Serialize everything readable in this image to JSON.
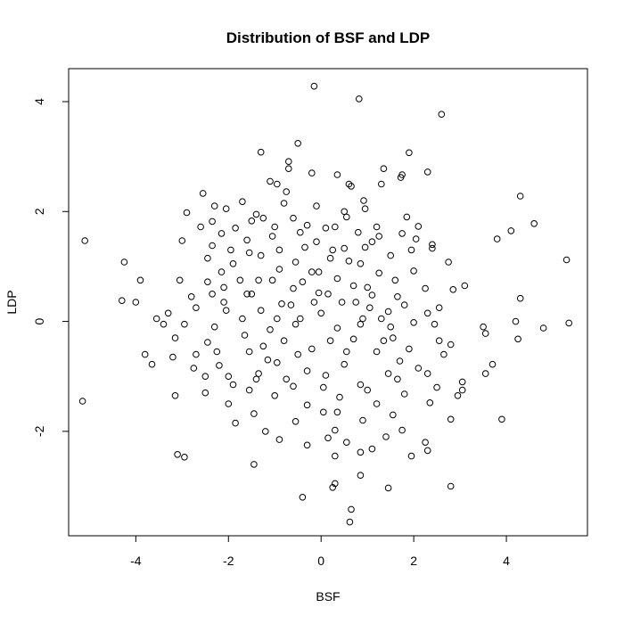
{
  "chart_data": {
    "type": "scatter",
    "title": "Distribution of BSF and LDP",
    "xlabel": "BSF",
    "ylabel": "LDP",
    "xlim": [
      -5.45,
      5.75
    ],
    "ylim": [
      -3.9,
      4.6
    ],
    "x_ticks": [
      -4,
      -2,
      0,
      2,
      4
    ],
    "y_ticks": [
      -2,
      0,
      2,
      4
    ],
    "x_tick_labels": [
      "-4",
      "-2",
      "0",
      "2",
      "4"
    ],
    "y_tick_labels": [
      "-2",
      "0",
      "2",
      "4"
    ],
    "grid": false,
    "box": true,
    "marker": "open-circle",
    "points": [
      [
        -0.15,
        4.28
      ],
      [
        0.82,
        4.05
      ],
      [
        2.6,
        3.77
      ],
      [
        -0.5,
        3.24
      ],
      [
        -1.3,
        3.08
      ],
      [
        1.9,
        3.07
      ],
      [
        -0.7,
        2.91
      ],
      [
        -0.7,
        2.78
      ],
      [
        1.35,
        2.78
      ],
      [
        2.3,
        2.72
      ],
      [
        -0.2,
        2.7
      ],
      [
        0.35,
        2.67
      ],
      [
        1.75,
        2.67
      ],
      [
        1.72,
        2.62
      ],
      [
        -1.1,
        2.55
      ],
      [
        -0.95,
        2.5
      ],
      [
        0.6,
        2.5
      ],
      [
        0.65,
        2.46
      ],
      [
        1.3,
        2.5
      ],
      [
        -2.55,
        2.33
      ],
      [
        -0.75,
        2.36
      ],
      [
        4.3,
        2.28
      ],
      [
        -1.7,
        2.18
      ],
      [
        0.92,
        2.2
      ],
      [
        -2.3,
        2.1
      ],
      [
        -2.05,
        2.05
      ],
      [
        -0.1,
        2.1
      ],
      [
        0.95,
        2.05
      ],
      [
        -2.9,
        1.98
      ],
      [
        -1.4,
        1.95
      ],
      [
        -1.25,
        1.88
      ],
      [
        -0.6,
        1.88
      ],
      [
        0.55,
        1.9
      ],
      [
        1.85,
        1.9
      ],
      [
        -2.35,
        1.82
      ],
      [
        -1.5,
        1.83
      ],
      [
        -0.3,
        1.75
      ],
      [
        4.6,
        1.78
      ],
      [
        2.1,
        1.73
      ],
      [
        -2.6,
        1.72
      ],
      [
        -1.85,
        1.7
      ],
      [
        -1.0,
        1.72
      ],
      [
        0.3,
        1.72
      ],
      [
        1.2,
        1.72
      ],
      [
        4.1,
        1.65
      ],
      [
        -2.15,
        1.6
      ],
      [
        -0.45,
        1.62
      ],
      [
        0.8,
        1.62
      ],
      [
        1.75,
        1.6
      ],
      [
        3.8,
        1.5
      ],
      [
        -5.1,
        1.47
      ],
      [
        -3.0,
        1.47
      ],
      [
        -1.6,
        1.48
      ],
      [
        -0.1,
        1.45
      ],
      [
        1.1,
        1.45
      ],
      [
        2.4,
        1.4
      ],
      [
        2.4,
        1.33
      ],
      [
        -2.35,
        1.38
      ],
      [
        -0.9,
        1.3
      ],
      [
        0.5,
        1.33
      ],
      [
        1.95,
        1.3
      ],
      [
        -2.45,
        1.15
      ],
      [
        -1.3,
        1.2
      ],
      [
        0.2,
        1.15
      ],
      [
        1.5,
        1.2
      ],
      [
        5.3,
        1.12
      ],
      [
        -4.25,
        1.08
      ],
      [
        -1.9,
        1.05
      ],
      [
        -0.55,
        1.08
      ],
      [
        0.85,
        1.05
      ],
      [
        2.75,
        1.08
      ],
      [
        -2.15,
        0.9
      ],
      [
        -0.2,
        0.9
      ],
      [
        1.25,
        0.88
      ],
      [
        2.0,
        0.92
      ],
      [
        -3.05,
        0.75
      ],
      [
        -3.9,
        0.75
      ],
      [
        -2.45,
        0.72
      ],
      [
        -1.05,
        0.75
      ],
      [
        0.35,
        0.78
      ],
      [
        1.6,
        0.75
      ],
      [
        -2.1,
        0.62
      ],
      [
        -0.6,
        0.6
      ],
      [
        0.7,
        0.65
      ],
      [
        3.1,
        0.65
      ],
      [
        2.85,
        0.58
      ],
      [
        -2.8,
        0.45
      ],
      [
        -1.5,
        0.5
      ],
      [
        -0.05,
        0.52
      ],
      [
        1.1,
        0.48
      ],
      [
        4.3,
        0.42
      ],
      [
        -4.3,
        0.38
      ],
      [
        -4.0,
        0.35
      ],
      [
        -3.3,
        0.15
      ],
      [
        -2.1,
        0.35
      ],
      [
        -0.85,
        0.32
      ],
      [
        0.45,
        0.35
      ],
      [
        1.8,
        0.3
      ],
      [
        2.55,
        0.25
      ],
      [
        -2.7,
        0.25
      ],
      [
        -1.3,
        0.2
      ],
      [
        0.0,
        0.15
      ],
      [
        1.45,
        0.18
      ],
      [
        2.3,
        0.15
      ],
      [
        3.5,
        -0.1
      ],
      [
        -3.55,
        0.05
      ],
      [
        -3.4,
        -0.05
      ],
      [
        -2.95,
        -0.05
      ],
      [
        -1.7,
        0.05
      ],
      [
        -0.45,
        0.05
      ],
      [
        0.9,
        0.05
      ],
      [
        2.0,
        -0.02
      ],
      [
        4.2,
        0.0
      ],
      [
        5.35,
        -0.03
      ],
      [
        -2.3,
        -0.1
      ],
      [
        -1.1,
        -0.15
      ],
      [
        0.35,
        -0.12
      ],
      [
        1.5,
        -0.1
      ],
      [
        4.8,
        -0.12
      ],
      [
        3.55,
        -0.22
      ],
      [
        -3.15,
        -0.3
      ],
      [
        -2.45,
        -0.38
      ],
      [
        -0.8,
        -0.35
      ],
      [
        0.7,
        -0.32
      ],
      [
        2.55,
        -0.35
      ],
      [
        4.25,
        -0.32
      ],
      [
        -3.8,
        -0.6
      ],
      [
        -2.7,
        -0.6
      ],
      [
        -1.55,
        -0.55
      ],
      [
        -0.2,
        -0.5
      ],
      [
        1.2,
        -0.55
      ],
      [
        2.8,
        -0.42
      ],
      [
        -3.65,
        -0.78
      ],
      [
        -2.2,
        -0.8
      ],
      [
        -0.95,
        -0.75
      ],
      [
        0.5,
        -0.78
      ],
      [
        1.7,
        -0.72
      ],
      [
        3.7,
        -0.78
      ],
      [
        -3.2,
        -0.65
      ],
      [
        -2.5,
        -1.0
      ],
      [
        -1.35,
        -0.95
      ],
      [
        0.1,
        -0.98
      ],
      [
        1.45,
        -0.95
      ],
      [
        3.55,
        -0.95
      ],
      [
        2.3,
        -0.95
      ],
      [
        -1.9,
        -1.15
      ],
      [
        -0.6,
        -1.18
      ],
      [
        0.85,
        -1.15
      ],
      [
        2.5,
        -1.2
      ],
      [
        3.05,
        -1.1
      ],
      [
        -3.15,
        -1.35
      ],
      [
        -2.5,
        -1.3
      ],
      [
        -1.0,
        -1.35
      ],
      [
        0.4,
        -1.38
      ],
      [
        1.8,
        -1.32
      ],
      [
        2.95,
        -1.35
      ],
      [
        3.05,
        -1.25
      ],
      [
        -2.0,
        -1.5
      ],
      [
        -0.3,
        -1.52
      ],
      [
        1.2,
        -1.5
      ],
      [
        2.35,
        -1.48
      ],
      [
        -5.15,
        -1.45
      ],
      [
        -1.45,
        -1.68
      ],
      [
        0.05,
        -1.65
      ],
      [
        1.55,
        -1.7
      ],
      [
        -1.85,
        -1.85
      ],
      [
        -0.55,
        -1.82
      ],
      [
        0.9,
        -1.8
      ],
      [
        2.8,
        -1.78
      ],
      [
        3.9,
        -1.78
      ],
      [
        -1.2,
        -2.0
      ],
      [
        0.3,
        -1.98
      ],
      [
        1.75,
        -1.98
      ],
      [
        -0.9,
        -2.15
      ],
      [
        0.55,
        -2.2
      ],
      [
        1.4,
        -2.1
      ],
      [
        2.25,
        -2.2
      ],
      [
        -0.3,
        -2.25
      ],
      [
        0.15,
        -2.12
      ],
      [
        1.1,
        -2.32
      ],
      [
        -3.1,
        -2.42
      ],
      [
        -2.95,
        -2.47
      ],
      [
        0.85,
        -2.38
      ],
      [
        1.95,
        -2.45
      ],
      [
        2.3,
        -2.35
      ],
      [
        -1.45,
        -2.6
      ],
      [
        0.3,
        -2.45
      ],
      [
        0.85,
        -2.8
      ],
      [
        0.3,
        -2.95
      ],
      [
        0.25,
        -3.02
      ],
      [
        1.45,
        -3.03
      ],
      [
        2.8,
        -3.0
      ],
      [
        -0.4,
        -3.2
      ],
      [
        0.65,
        -3.42
      ],
      [
        0.62,
        -3.65
      ],
      [
        -0.9,
        0.95
      ],
      [
        -1.75,
        0.75
      ],
      [
        -1.55,
        1.25
      ],
      [
        0.6,
        1.1
      ],
      [
        1.0,
        0.62
      ],
      [
        -0.35,
        1.35
      ],
      [
        0.15,
        0.5
      ],
      [
        -0.55,
        -0.05
      ],
      [
        -1.25,
        -0.45
      ],
      [
        0.55,
        -0.55
      ],
      [
        1.9,
        -0.5
      ],
      [
        -1.65,
        -0.25
      ],
      [
        -0.05,
        0.9
      ],
      [
        1.3,
        0.05
      ],
      [
        -2.05,
        0.2
      ],
      [
        0.95,
        1.35
      ],
      [
        -0.75,
        -1.05
      ],
      [
        1.0,
        -1.25
      ],
      [
        -1.55,
        -1.25
      ],
      [
        0.2,
        -0.35
      ],
      [
        -0.95,
        0.05
      ],
      [
        1.65,
        0.45
      ],
      [
        2.25,
        0.6
      ],
      [
        -2.25,
        -0.55
      ],
      [
        -1.05,
        1.55
      ],
      [
        0.5,
        2.0
      ],
      [
        -0.3,
        -0.9
      ],
      [
        1.35,
        -0.35
      ],
      [
        2.1,
        -0.85
      ],
      [
        -2.75,
        -0.85
      ],
      [
        -1.6,
        0.5
      ],
      [
        0.25,
        1.3
      ],
      [
        -0.65,
        0.3
      ],
      [
        1.65,
        -1.05
      ],
      [
        0.05,
        -1.2
      ],
      [
        -1.35,
        0.75
      ],
      [
        1.05,
        0.25
      ],
      [
        -0.5,
        -0.6
      ],
      [
        2.65,
        -0.6
      ],
      [
        -2.0,
        -1.0
      ],
      [
        0.75,
        0.35
      ],
      [
        -1.15,
        -0.7
      ],
      [
        1.25,
        1.55
      ],
      [
        -0.8,
        2.15
      ],
      [
        0.35,
        -1.65
      ],
      [
        -2.35,
        0.5
      ],
      [
        2.05,
        1.5
      ],
      [
        -1.95,
        1.3
      ],
      [
        -0.15,
        0.35
      ],
      [
        0.85,
        -0.05
      ],
      [
        1.55,
        -0.3
      ],
      [
        -0.4,
        0.72
      ],
      [
        -1.4,
        -1.05
      ],
      [
        0.1,
        1.7
      ],
      [
        2.45,
        -0.05
      ]
    ]
  }
}
